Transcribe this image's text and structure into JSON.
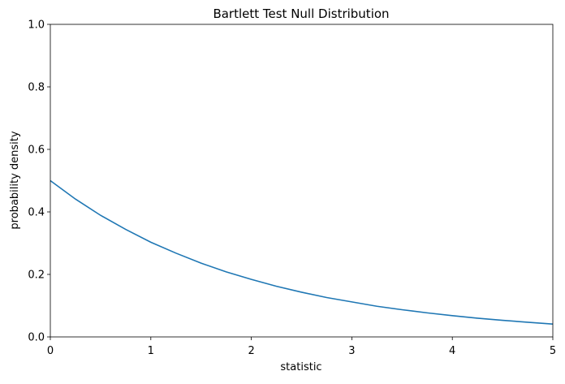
{
  "chart_data": {
    "type": "line",
    "title": "Bartlett Test Null Distribution",
    "xlabel": "statistic",
    "ylabel": "probability density",
    "x": [
      0,
      0.25,
      0.5,
      0.75,
      1,
      1.25,
      1.5,
      1.75,
      2,
      2.25,
      2.5,
      2.75,
      3,
      3.25,
      3.5,
      3.75,
      4,
      4.25,
      4.5,
      4.75,
      5
    ],
    "values": [
      0.5,
      0.441,
      0.389,
      0.344,
      0.303,
      0.268,
      0.236,
      0.208,
      0.184,
      0.162,
      0.143,
      0.126,
      0.112,
      0.098,
      0.087,
      0.077,
      0.068,
      0.06,
      0.053,
      0.047,
      0.041
    ],
    "color": "#1f77b4",
    "xlim": [
      0,
      5
    ],
    "xticks": [
      0,
      1,
      2,
      3,
      4,
      5
    ],
    "ylim": [
      0,
      1
    ],
    "yticks": [
      {
        "value": 0,
        "label": "0.0"
      },
      0.2,
      0.4,
      0.6,
      0.8,
      {
        "value": 1,
        "label": "1.0"
      }
    ],
    "grid": false
  }
}
